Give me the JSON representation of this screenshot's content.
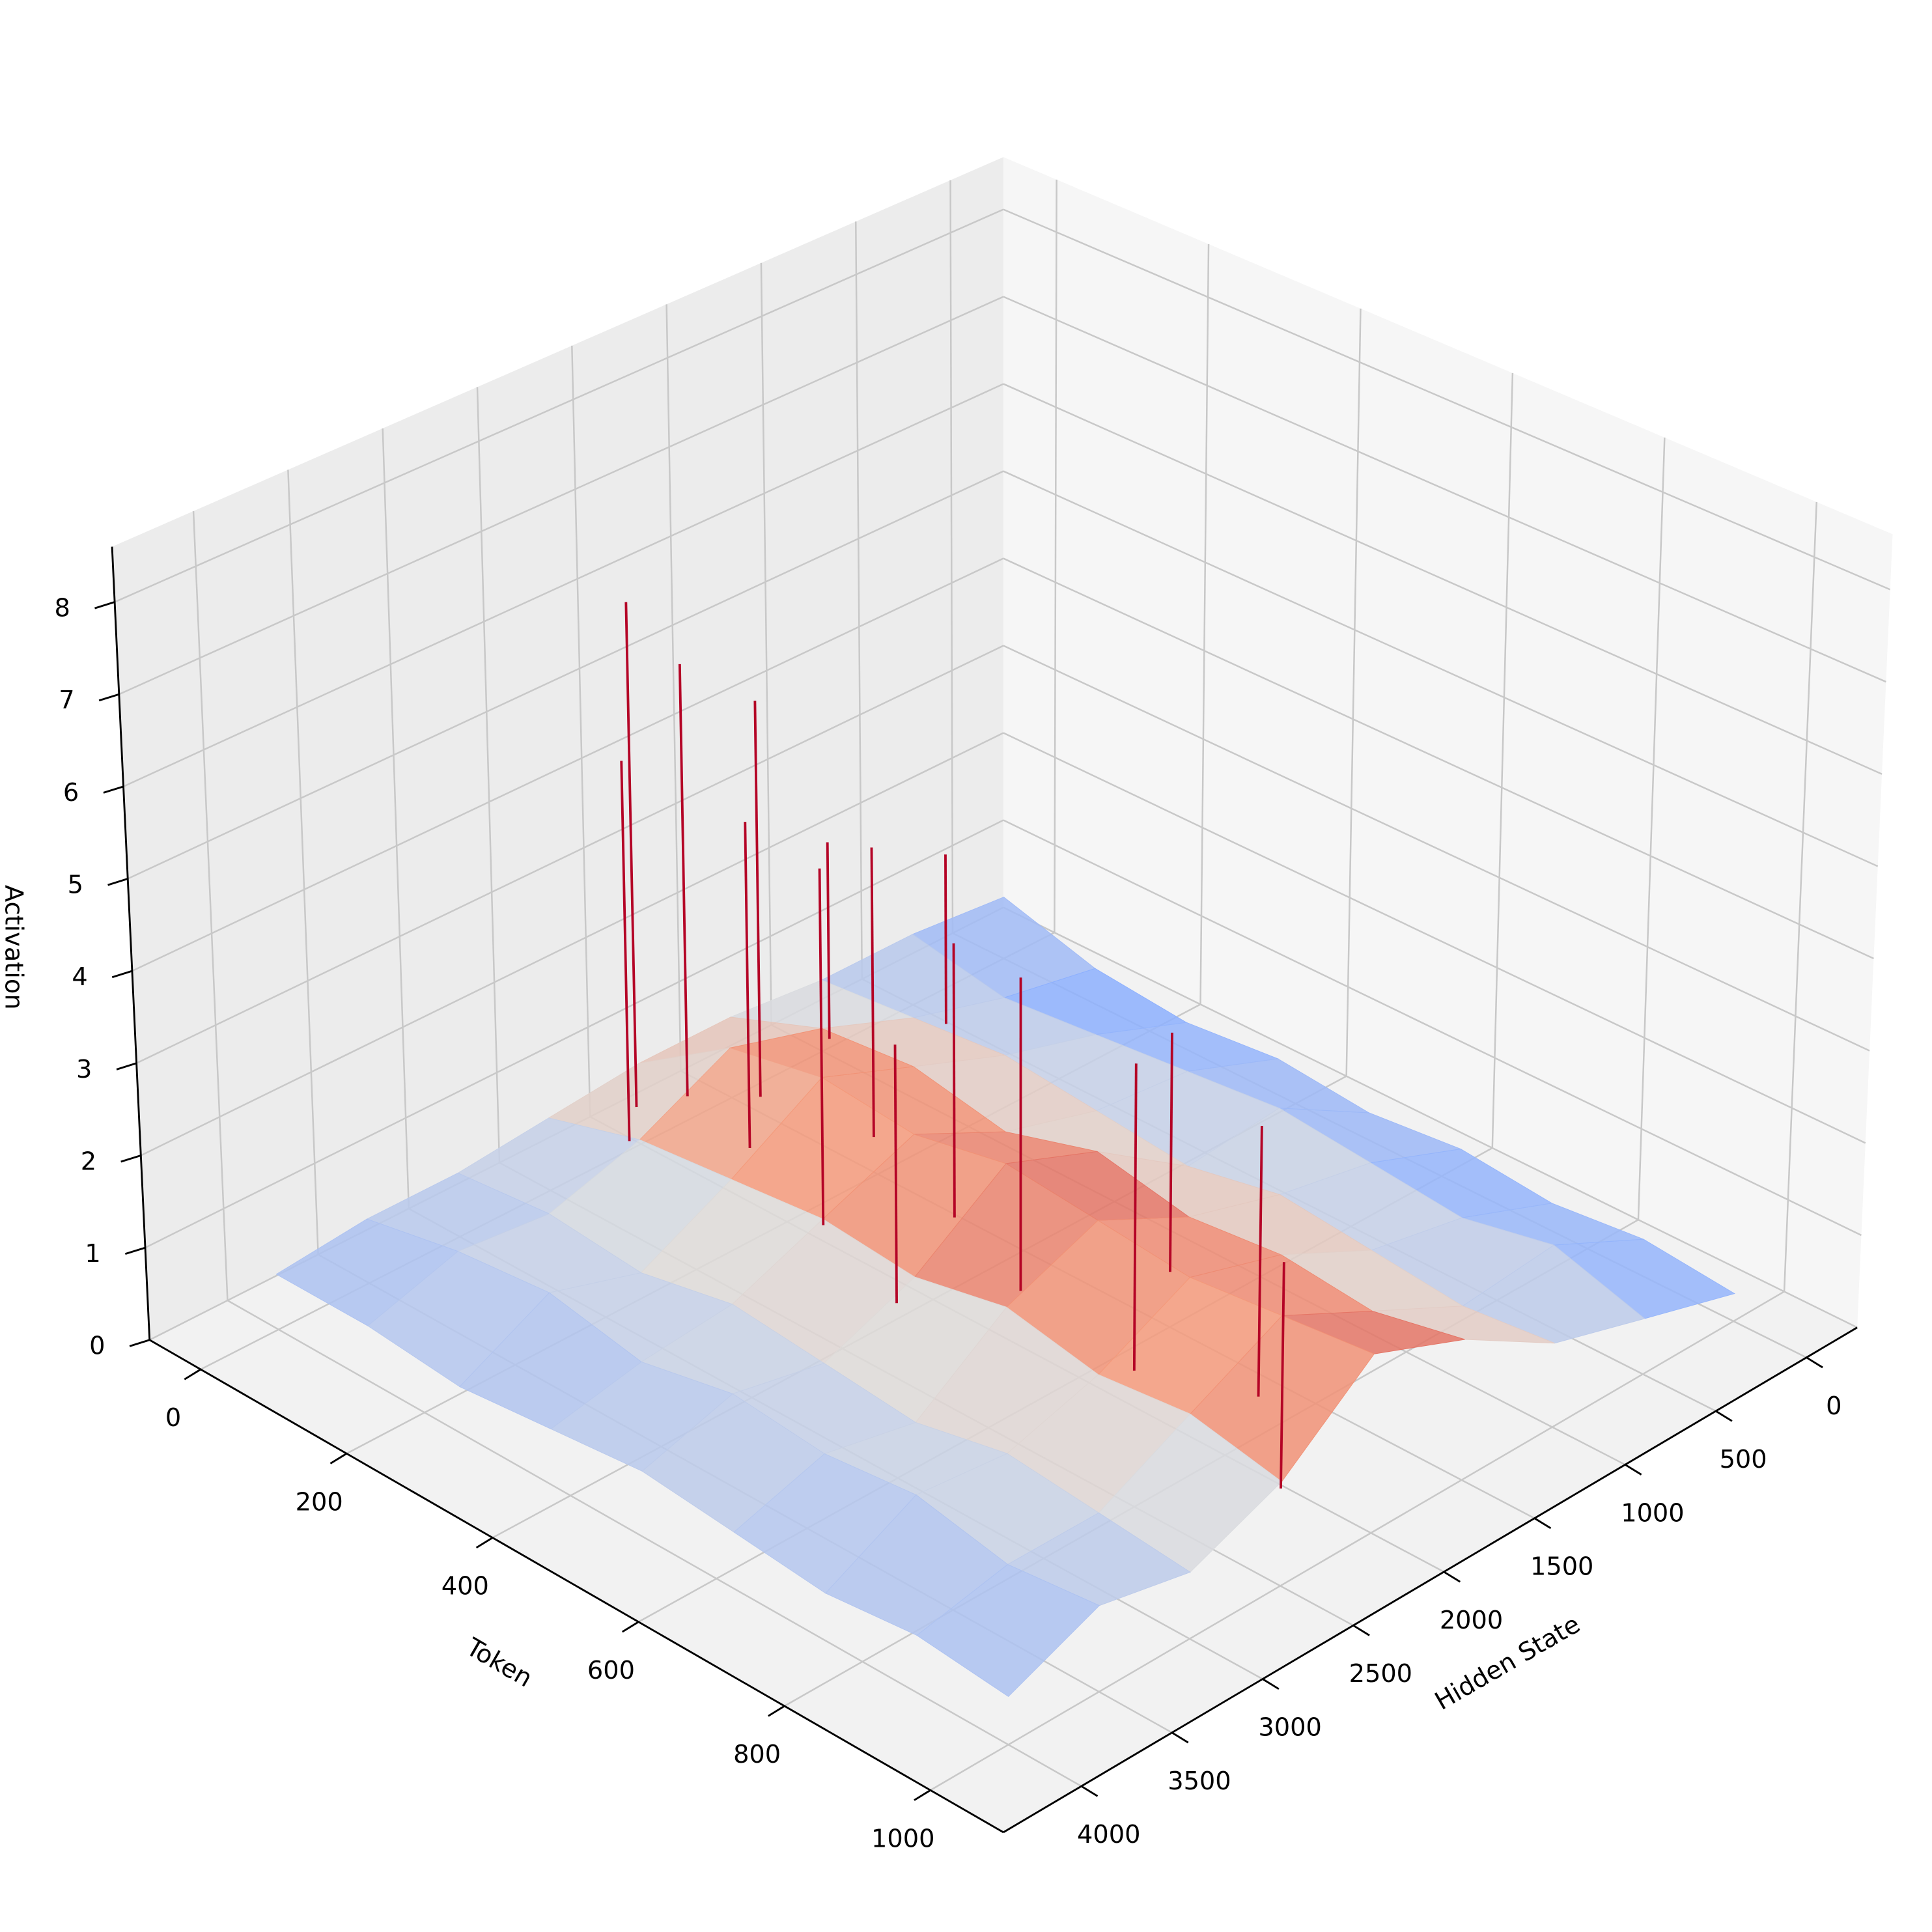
{
  "chart_data": {
    "type": "surface3d",
    "x_label": "Token",
    "y_label": "Hidden State",
    "z_label": "Activation",
    "xlim": [
      -70,
      1100
    ],
    "ylim": [
      -280,
      4430
    ],
    "zlim": [
      0,
      8.6
    ],
    "xticks": [
      0,
      200,
      400,
      600,
      800,
      1000
    ],
    "yticks": [
      0,
      500,
      1000,
      1500,
      2000,
      2500,
      3000,
      3500,
      4000
    ],
    "zticks": [
      0,
      1,
      2,
      3,
      4,
      5,
      6,
      7,
      8
    ],
    "colormap": "coolwarm",
    "clim": [
      0,
      2
    ],
    "grid": true,
    "x": [
      0,
      125,
      250,
      375,
      500,
      625,
      750,
      875,
      1000
    ],
    "y": [
      0,
      500,
      1000,
      1500,
      2000,
      2500,
      3000,
      3500,
      4000
    ],
    "z": [
      [
        0.7,
        0.8,
        0.8,
        0.9,
        0.9,
        0.8,
        0.7,
        0.7,
        0.6
      ],
      [
        0.4,
        0.6,
        0.9,
        1.3,
        1.6,
        1.1,
        0.8,
        0.9,
        0.6
      ],
      [
        0.3,
        0.7,
        1.0,
        1.4,
        1.8,
        1.2,
        0.7,
        1.0,
        0.5
      ],
      [
        0.4,
        0.8,
        0.9,
        1.2,
        1.7,
        1.3,
        0.9,
        0.8,
        0.6
      ],
      [
        0.3,
        0.9,
        0.8,
        1.5,
        1.9,
        1.2,
        0.8,
        1.0,
        0.7
      ],
      [
        0.4,
        0.8,
        1.0,
        1.3,
        1.8,
        1.4,
        0.7,
        0.9,
        0.6
      ],
      [
        0.3,
        0.7,
        0.9,
        1.4,
        1.7,
        1.2,
        0.9,
        1.0,
        0.5
      ],
      [
        0.4,
        0.9,
        0.8,
        1.3,
        1.8,
        1.3,
        0.8,
        0.8,
        0.6
      ],
      [
        0.3,
        0.6,
        0.9,
        1.5,
        1.9,
        1.1,
        0.7,
        0.9,
        0.5
      ]
    ],
    "spikes": {
      "x": [
        20,
        40,
        60,
        90,
        150,
        220,
        300,
        380,
        450,
        520,
        600,
        700,
        820,
        950,
        60,
        120
      ],
      "y": [
        2100,
        1900,
        2300,
        1700,
        2000,
        1600,
        2200,
        1800,
        2400,
        2000,
        1500,
        2100,
        1900,
        2300,
        1200,
        800
      ],
      "values": [
        6.2,
        5.4,
        4.8,
        5.0,
        4.2,
        3.8,
        4.5,
        3.6,
        3.4,
        4.0,
        3.2,
        3.9,
        3.5,
        3.0,
        2.8,
        2.5
      ]
    }
  }
}
